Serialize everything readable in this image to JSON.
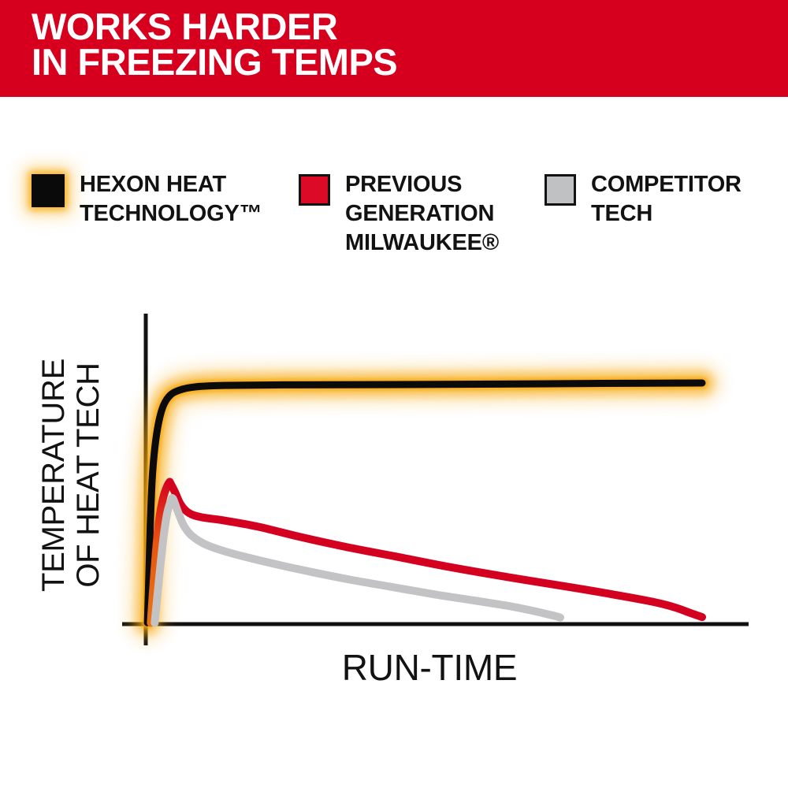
{
  "banner": {
    "line1": "WORKS HARDER",
    "line2": "IN FREEZING TEMPS",
    "bg_color": "#D6001E",
    "text_color": "#FFFFFF"
  },
  "legend": {
    "items": [
      {
        "id": "hexon-heat",
        "swatch_color": "#0A0A0A",
        "glow_color": "#F8AB10",
        "lines": [
          "HEXON HEAT",
          "TECHNOLOGY™"
        ]
      },
      {
        "id": "previous-generation",
        "swatch_color": "#DC0A26",
        "swatch_border_color": "#121212",
        "lines": [
          "PREVIOUS",
          "GENERATION",
          "MILWAUKEE®"
        ]
      },
      {
        "id": "competitor-tech",
        "swatch_color": "#C0C1C3",
        "swatch_border_color": "#121212",
        "lines": [
          "COMPETITOR",
          "TECH"
        ]
      }
    ]
  },
  "chart_data": {
    "type": "line",
    "title": "",
    "xlabel": "RUN-TIME",
    "ylabel": "TEMPERATURE OF HEAT TECH",
    "ylabel_lines": [
      "TEMPERATURE",
      "OF HEAT TECH"
    ],
    "axis_color": "#111111",
    "grid": false,
    "legend_position": "top",
    "x_units": "relative run-time (axis has no tick labels), 0-100 scale",
    "y_units": "relative temperature of heat tech (axis has no tick labels), 0-100 scale",
    "xlim": [
      0,
      100
    ],
    "ylim": [
      0,
      100
    ],
    "series": [
      {
        "name": "HEXON HEAT TECHNOLOGY™",
        "color": "#0B0B0B",
        "glow": true,
        "glow_color": "#F7A80C",
        "shape_note": "rises almost instantly, then stays flat at max temperature for entire run-time",
        "points": [
          [
            0.3,
            0.6
          ],
          [
            0.5,
            15
          ],
          [
            0.8,
            40
          ],
          [
            1.2,
            62
          ],
          [
            1.9,
            78
          ],
          [
            2.9,
            89
          ],
          [
            4.2,
            94.5
          ],
          [
            6,
            97
          ],
          [
            9,
            98.4
          ],
          [
            14,
            99
          ],
          [
            25,
            99.2
          ],
          [
            40,
            99.3
          ],
          [
            60,
            99.5
          ],
          [
            80,
            99.8
          ],
          [
            100,
            100
          ]
        ]
      },
      {
        "name": "PREVIOUS GENERATION MILWAUKEE®",
        "color": "#D40020",
        "glow": false,
        "ascent_gradient": [
          "#E87414",
          "#D40020"
        ],
        "shape_note": "spikes early to ~59% of max, then declines steadily and drops off near end of run-time",
        "points": [
          [
            0.9,
            0.5
          ],
          [
            1.3,
            14
          ],
          [
            1.9,
            32
          ],
          [
            2.5,
            45
          ],
          [
            3.2,
            53
          ],
          [
            3.9,
            57.5
          ],
          [
            4.3,
            59
          ],
          [
            5.2,
            55
          ],
          [
            6.3,
            49.5
          ],
          [
            7.8,
            46
          ],
          [
            10,
            44.3
          ],
          [
            14,
            43
          ],
          [
            20,
            40.5
          ],
          [
            28,
            36
          ],
          [
            36,
            32
          ],
          [
            45,
            28
          ],
          [
            55,
            23.5
          ],
          [
            65,
            19.5
          ],
          [
            75,
            15.8
          ],
          [
            84,
            12.3
          ],
          [
            91,
            9.3
          ],
          [
            95,
            7
          ],
          [
            98,
            4.5
          ],
          [
            100,
            2.9
          ]
        ]
      },
      {
        "name": "COMPETITOR TECH",
        "color": "#C3C3C5",
        "glow": false,
        "shape_note": "spikes early to ~52% of max, declines faster and run-time ends at ~75% of the others",
        "points": [
          [
            1.6,
            0.5
          ],
          [
            2.1,
            12
          ],
          [
            2.7,
            26
          ],
          [
            3.3,
            38
          ],
          [
            3.9,
            46.5
          ],
          [
            4.5,
            51
          ],
          [
            4.9,
            52
          ],
          [
            5.8,
            46.5
          ],
          [
            6.8,
            41
          ],
          [
            8.2,
            36.8
          ],
          [
            10.5,
            33.3
          ],
          [
            13.5,
            30.7
          ],
          [
            18,
            27.8
          ],
          [
            24,
            24.5
          ],
          [
            30,
            21.5
          ],
          [
            37,
            18.3
          ],
          [
            44,
            15.5
          ],
          [
            52,
            12.3
          ],
          [
            59,
            9.8
          ],
          [
            65,
            7.6
          ],
          [
            69,
            5.8
          ],
          [
            72,
            4.2
          ],
          [
            73.8,
            3.2
          ],
          [
            74.5,
            2.7
          ]
        ]
      }
    ]
  }
}
